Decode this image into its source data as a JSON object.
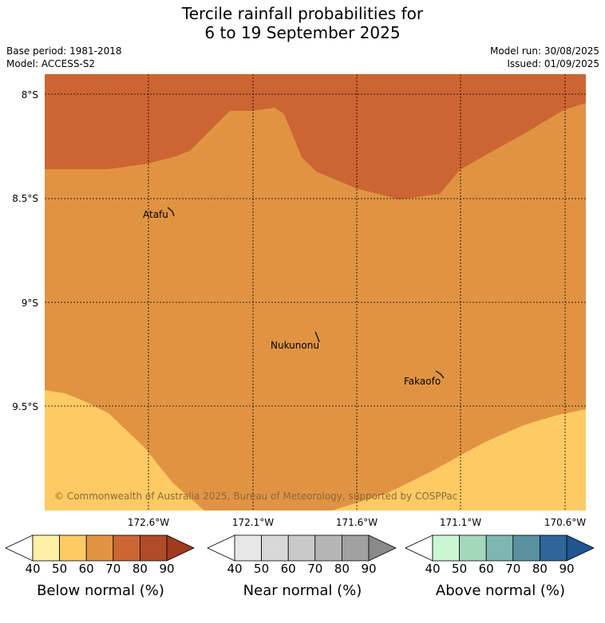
{
  "title": {
    "line1": "Tercile rainfall probabilities for",
    "line2": "6 to 19 September 2025"
  },
  "info": {
    "base_period": "Base period: 1981-2018",
    "model": "Model: ACCESS-S2",
    "model_run": "Model run: 30/08/2025",
    "issued": "Issued: 01/09/2025"
  },
  "map": {
    "lat_labels": [
      "8°S",
      "8.5°S",
      "9°S",
      "9.5°S"
    ],
    "lon_labels": [
      "172.6°W",
      "172.1°W",
      "171.6°W",
      "171.1°W",
      "170.6°W"
    ],
    "places": [
      "Atafu",
      "Nukunonu",
      "Fakaofo"
    ],
    "copyright": "© Commonwealth of Australia 2025, Bureau of Meteorology, supported by COSPPac",
    "category_colors": {
      "below_50_60": "#fdca63",
      "below_60_70": "#e09443",
      "below_70_80": "#cc6532"
    }
  },
  "colorbars": [
    {
      "title": "Below normal (%)",
      "ticks": [
        "40",
        "50",
        "60",
        "70",
        "80",
        "90"
      ],
      "colors": [
        "#ffffff",
        "#fff0a8",
        "#fdca63",
        "#e09443",
        "#cc6532",
        "#b24b2a",
        "#a23a1e"
      ]
    },
    {
      "title": "Near normal (%)",
      "ticks": [
        "40",
        "50",
        "60",
        "70",
        "80",
        "90"
      ],
      "colors": [
        "#ffffff",
        "#e8e8e8",
        "#d8d8d8",
        "#c8c8c8",
        "#b5b5b5",
        "#a1a1a1",
        "#8a8a8a"
      ]
    },
    {
      "title": "Above normal (%)",
      "ticks": [
        "40",
        "50",
        "60",
        "70",
        "80",
        "90"
      ],
      "colors": [
        "#ffffff",
        "#c9f7d1",
        "#a3d8bb",
        "#7fb6b0",
        "#5a91a0",
        "#2e6699",
        "#1f5590"
      ]
    }
  ]
}
